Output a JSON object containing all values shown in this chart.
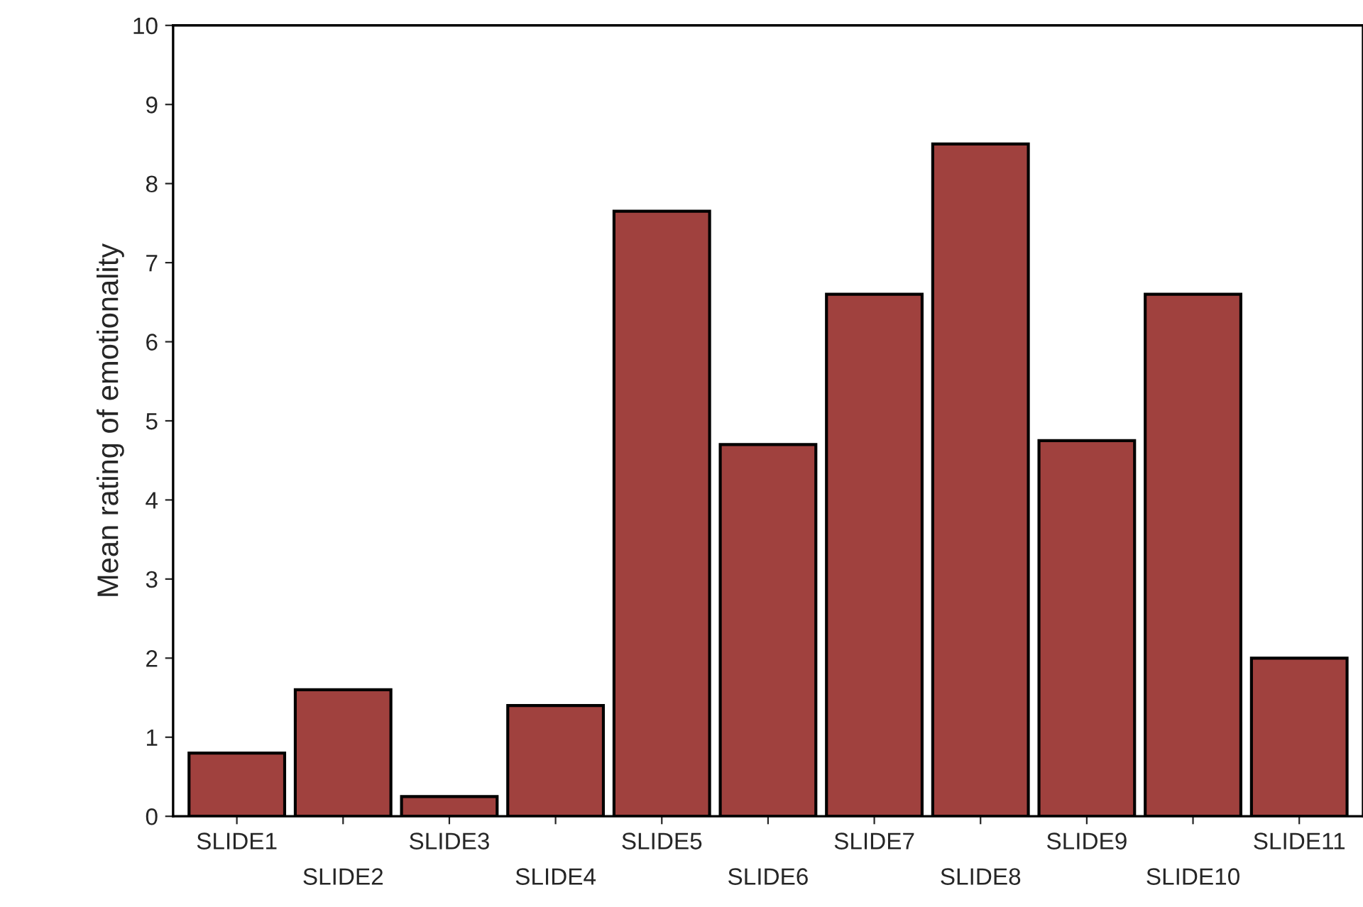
{
  "chart_data": {
    "type": "bar",
    "ylabel": "Mean rating of emotionality",
    "categories": [
      "SLIDE1",
      "SLIDE2",
      "SLIDE3",
      "SLIDE4",
      "SLIDE5",
      "SLIDE6",
      "SLIDE7",
      "SLIDE8",
      "SLIDE9",
      "SLIDE10",
      "SLIDE11"
    ],
    "values": [
      0.8,
      1.6,
      0.25,
      1.4,
      7.65,
      4.7,
      6.6,
      8.5,
      4.75,
      6.6,
      2.0
    ],
    "color": "#a0413e",
    "ylim": [
      0,
      10
    ],
    "yticks": [
      0,
      1,
      2,
      3,
      4,
      5,
      6,
      7,
      8,
      9,
      10
    ],
    "grid": false,
    "legend": false
  }
}
